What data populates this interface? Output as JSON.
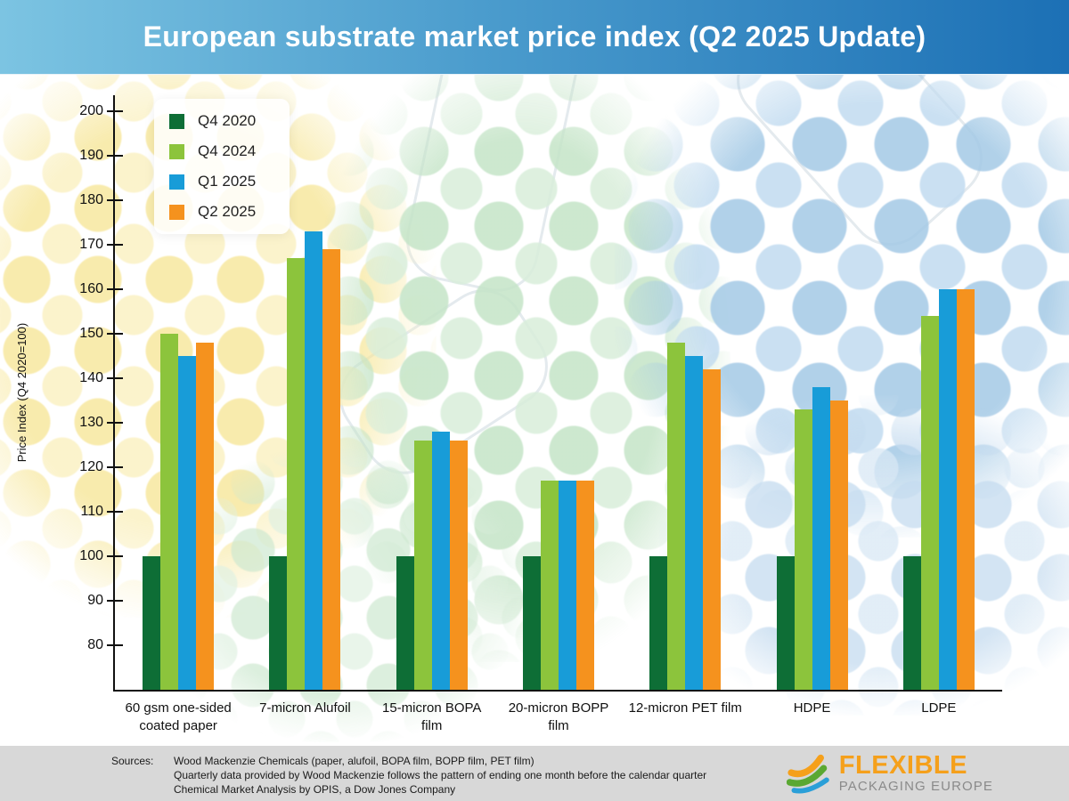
{
  "header": {
    "title": "European substrate market price index (Q2 2025 Update)"
  },
  "chart_data": {
    "type": "bar",
    "title": "European substrate market price index (Q2 2025 Update)",
    "xlabel": "",
    "ylabel": "Price Index (Q4 2020=100)",
    "ylim": [
      70,
      204
    ],
    "yticks": [
      80,
      90,
      100,
      110,
      120,
      130,
      140,
      150,
      160,
      170,
      180,
      190,
      200
    ],
    "grid": false,
    "legend_position": "top-left",
    "categories": [
      "60 gsm one-sided coated paper",
      "7-micron Alufoil",
      "15-micron BOPA film",
      "20-micron BOPP film",
      "12-micron PET film",
      "HDPE",
      "LDPE"
    ],
    "series": [
      {
        "name": "Q4 2020",
        "color": "#0e6e36",
        "values": [
          100,
          100,
          100,
          100,
          100,
          100,
          100
        ]
      },
      {
        "name": "Q4 2024",
        "color": "#8cc43c",
        "values": [
          150,
          167,
          126,
          117,
          148,
          133,
          154
        ]
      },
      {
        "name": "Q1 2025",
        "color": "#189cd8",
        "values": [
          145,
          173,
          128,
          117,
          145,
          138,
          160
        ]
      },
      {
        "name": "Q2 2025",
        "color": "#f5921e",
        "values": [
          148,
          169,
          126,
          117,
          142,
          135,
          160
        ]
      }
    ]
  },
  "footer": {
    "sources_label": "Sources:",
    "source_lines": [
      "Wood Mackenzie Chemicals (paper, alufoil, BOPA film, BOPP film, PET film)",
      "Quarterly data provided by Wood Mackenzie follows the pattern of ending one month before the calendar quarter",
      "Chemical Market Analysis by OPIS, a Dow Jones Company"
    ],
    "logo": {
      "line1": "FLEXIBLE",
      "line2": "PACKAGING EUROPE"
    }
  },
  "colors": {
    "header_gradient_start": "#7cc4e2",
    "header_gradient_end": "#1c70b5",
    "footer_bg": "#d8d8d8",
    "logo_orange": "#f5a01b",
    "logo_green": "#5aa832",
    "logo_blue": "#2a9fd8",
    "logo_gray": "#8a8a8a"
  }
}
